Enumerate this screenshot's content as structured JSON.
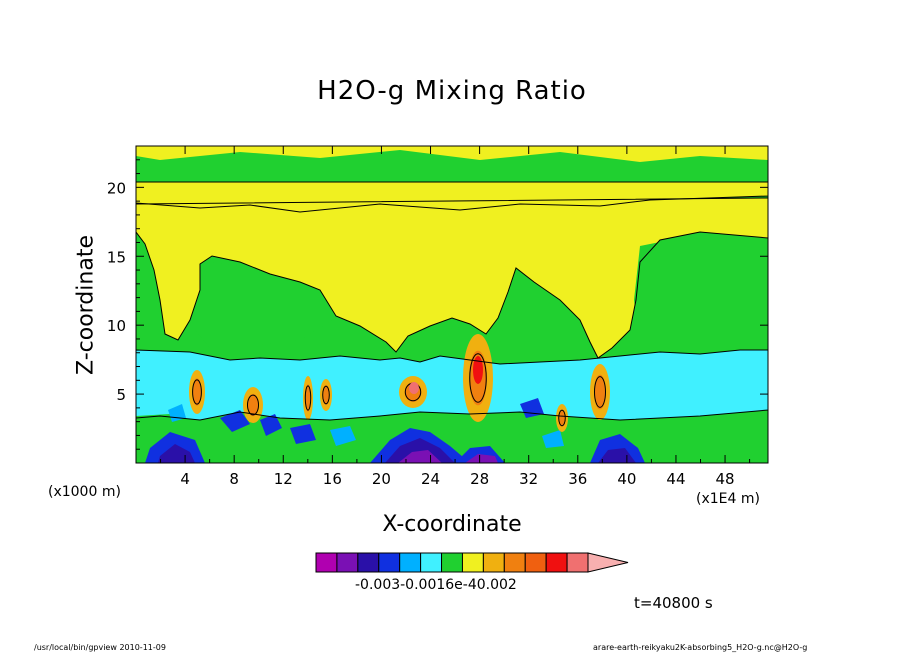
{
  "chart_data": {
    "type": "heatmap",
    "title": "H2O-g Mixing Ratio",
    "xlabel": "X-coordinate",
    "ylabel": "Z-coordinate",
    "x_unit_left": "(x1000 m)",
    "x_unit_right": "(x1E4 m)",
    "xlim": [
      0,
      51.5
    ],
    "ylim": [
      0,
      23
    ],
    "x_ticks": [
      4,
      8,
      12,
      16,
      20,
      24,
      28,
      32,
      36,
      40,
      44,
      48
    ],
    "x_tick_labels": [
      "4",
      "8",
      "12",
      "16",
      "20",
      "24",
      "28",
      "32",
      "36",
      "40",
      "44",
      "48"
    ],
    "y_ticks": [
      5,
      10,
      15,
      20
    ],
    "y_tick_labels": [
      "5",
      "10",
      "15",
      "20"
    ],
    "colorbar": {
      "colors": [
        "#b000b0",
        "#7a10b4",
        "#2a10a8",
        "#1030e0",
        "#00b0ff",
        "#40f0ff",
        "#20d030",
        "#f0f020",
        "#f0b010",
        "#f08010",
        "#f06010",
        "#f01010",
        "#f07070",
        "#f8b0b0"
      ],
      "labels_text": "-0.003-0.0016e-40.002"
    },
    "regions_legend": {
      "background": "green (near zero)",
      "upper_band": "yellow",
      "low_layer": "cyan below ~8 km",
      "convective_cores": "orange/red near x=5,10,16,22,28,38",
      "deep_minima": "purple/blue near surface at x=5,10,22,28,38"
    },
    "time_label": "t=40800 s"
  },
  "footer": {
    "left": "/usr/local/bin/gpview  2010-11-09",
    "right": "arare-earth-reikyaku2K-absorbing5_H2O-g.nc@H2O-g"
  }
}
